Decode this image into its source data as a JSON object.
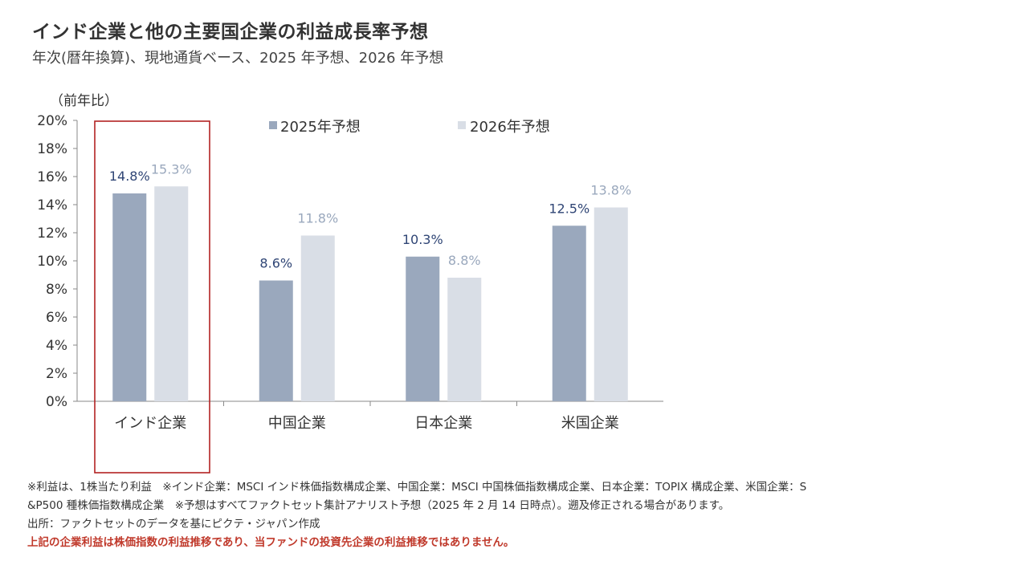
{
  "title": "インド企業と他の主要国企業の利益成長率予想",
  "subtitle": "年次(暦年換算)、現地通貨ベース、2025 年予想、2026 年予想",
  "chart_data": {
    "type": "bar",
    "ylabel": "（前年比）",
    "ylim": [
      0,
      20
    ],
    "yticks": [
      "0%",
      "2%",
      "4%",
      "6%",
      "8%",
      "10%",
      "12%",
      "14%",
      "16%",
      "18%",
      "20%"
    ],
    "categories": [
      "インド企業",
      "中国企業",
      "日本企業",
      "米国企業"
    ],
    "series": [
      {
        "name": "2025年予想",
        "color": "#9aa8bd",
        "label_color": "#2f4575",
        "values": [
          14.8,
          8.6,
          10.3,
          12.5
        ],
        "labels": [
          "14.8%",
          "8.6%",
          "10.3%",
          "12.5%"
        ]
      },
      {
        "name": "2026年予想",
        "color": "#d9dee6",
        "label_color": "#9aa8bd",
        "values": [
          15.3,
          11.8,
          8.8,
          13.8
        ],
        "labels": [
          "15.3%",
          "11.8%",
          "8.8%",
          "13.8%"
        ]
      }
    ],
    "legend": "top-center",
    "grid": false,
    "highlight": {
      "category": "インド企業",
      "color": "#b22222"
    }
  },
  "notes": [
    "※利益は、1株当たり利益　※インド企業：MSCI インド株価指数構成企業、中国企業：MSCI 中国株価指数構成企業、日本企業：TOPIX 構成企業、米国企業：S",
    "&P500 種株価指数構成企業　※予想はすべてファクトセット集計アナリスト予想（2025 年 2 月 14 日時点）。遡及修正される場合があります。",
    "出所：ファクトセットのデータを基にピクテ・ジャパン作成"
  ],
  "disclaimer": "上記の企業利益は株価指数の利益推移であり、当ファンドの投資先企業の利益推移ではありません。"
}
